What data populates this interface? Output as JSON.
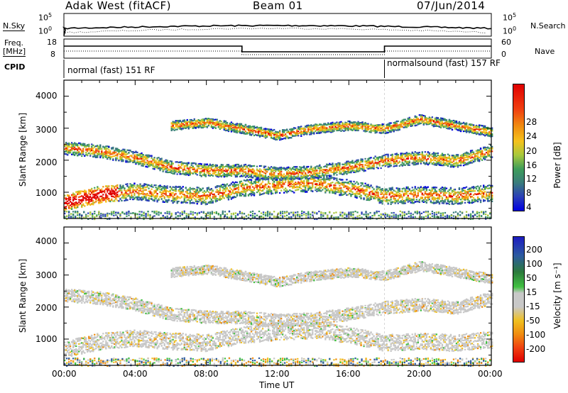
{
  "header": {
    "station": "Adak West (fitACF)",
    "beam": "Beam 01",
    "date": "07/Jun/2014"
  },
  "panels": {
    "nsky": {
      "label": "N.Sky",
      "ticks": [
        "10^5",
        "10^0"
      ],
      "right_label": "N.Search",
      "right_ticks": [
        "10^5",
        "10^0"
      ]
    },
    "freq": {
      "label_line1": "Freq.",
      "label_line2": "[MHz]",
      "ticks": [
        "18",
        "8"
      ],
      "right_label": "Nave",
      "right_ticks": [
        "60",
        "0"
      ]
    },
    "cpid": {
      "label": "CPID",
      "mode1": "normal (fast) 151 RF",
      "mode2": "normalsound (fast) 157 RF"
    }
  },
  "power_colorbar": {
    "label": "Power [dB]",
    "ticks": [
      "28",
      "24",
      "20",
      "16",
      "12",
      "8",
      "4"
    ],
    "colors": [
      "#0000e0",
      "#2b3fb8",
      "#3a7c7c",
      "#3e9d5a",
      "#a8c83c",
      "#f5c21c",
      "#f08c10",
      "#f04010",
      "#e00000"
    ]
  },
  "velocity_colorbar": {
    "label": "Velocity [m s⁻¹]",
    "ticks": [
      "200",
      "100",
      "50",
      "15",
      "-15",
      "-50",
      "-100",
      "-200"
    ],
    "colors": [
      "#1c1cc0",
      "#2c5aa0",
      "#2c7a3c",
      "#40c040",
      "#c8c8c8",
      "#f0c020",
      "#f08c10",
      "#f04010",
      "#e00000"
    ]
  },
  "y_axis": {
    "label": "Slant Range [km]",
    "ticks": [
      "4000",
      "3000",
      "2000",
      "1000"
    ]
  },
  "x_axis": {
    "label": "Time UT",
    "ticks": [
      "00:00",
      "04:00",
      "08:00",
      "12:00",
      "16:00",
      "20:00",
      "00:00"
    ]
  },
  "chart_data": {
    "type": "heatmap",
    "title": "Adak West (fitACF)",
    "xlabel": "Time UT",
    "ylabel": "Slant Range [km]",
    "xlim": [
      "00:00",
      "24:00"
    ],
    "ylim": [
      180,
      4500
    ],
    "mode_change_hour": 18,
    "freq_step_hours": [
      10,
      18
    ],
    "echo_bands": [
      {
        "name": "low",
        "x": [
          0,
          2,
          4,
          6,
          8,
          10,
          12,
          14,
          16,
          18,
          20,
          22,
          24
        ],
        "y": [
          700,
          950,
          1050,
          950,
          900,
          1150,
          1250,
          1300,
          1150,
          900,
          950,
          900,
          1000
        ]
      },
      {
        "name": "mid",
        "x": [
          0,
          2,
          4,
          6,
          8,
          10,
          12,
          14,
          16,
          18,
          20,
          22,
          24
        ],
        "y": [
          2400,
          2300,
          2100,
          1800,
          1700,
          1700,
          1600,
          1650,
          1800,
          2000,
          2100,
          2000,
          2300
        ]
      },
      {
        "name": "high",
        "x": [
          6,
          8,
          10,
          12,
          14,
          16,
          18,
          20,
          22,
          24
        ],
        "y": [
          3100,
          3200,
          3000,
          2800,
          3000,
          3100,
          3000,
          3300,
          3100,
          2900
        ]
      }
    ]
  }
}
